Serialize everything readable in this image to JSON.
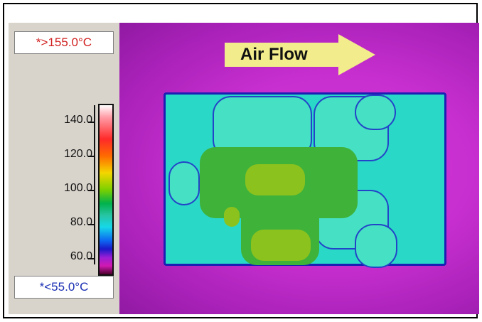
{
  "readouts": {
    "max": "*>155.0°C",
    "min": "*<55.0°C"
  },
  "scale": {
    "labels": [
      "140.0",
      "120.0",
      "100.0",
      "80.0",
      "60.0"
    ]
  },
  "image": {
    "arrow_label": "Air Flow"
  },
  "colors": {
    "max_text": "#d11f1f",
    "min_text": "#1a2fb3",
    "background_magenta": "#c82fd0",
    "board_cyan": "#2ad8c8"
  }
}
